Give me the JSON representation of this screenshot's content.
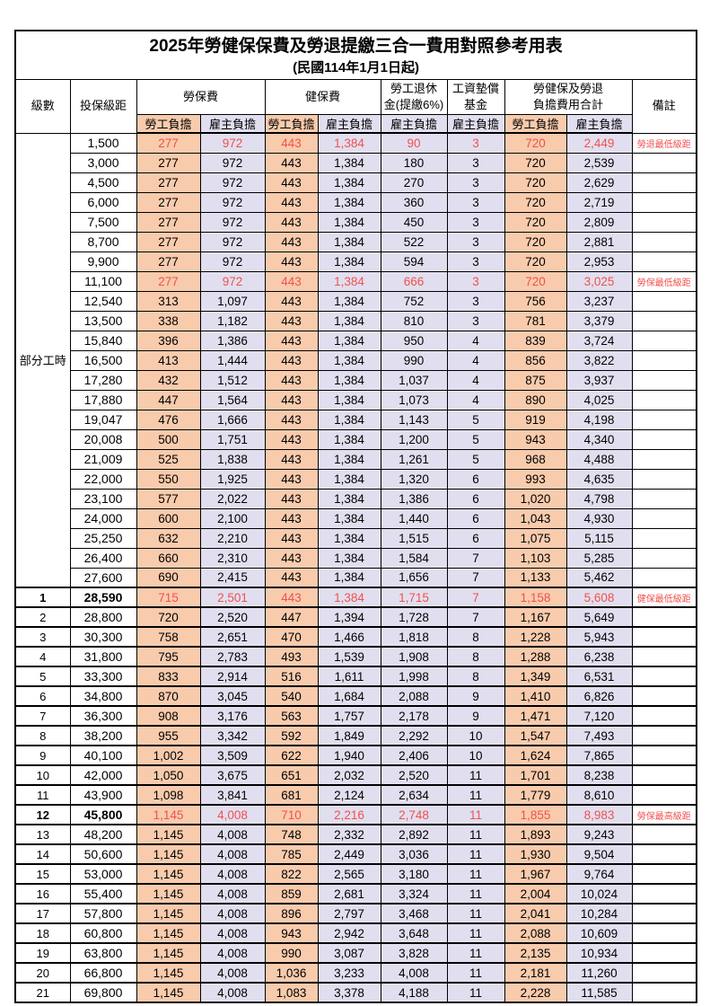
{
  "title": "2025年勞健保保費及勞退提繳三合一費用對照參考用表",
  "subtitle": "(民國114年1月1日起)",
  "header": {
    "level": "級數",
    "bracket": "投保級距",
    "labor_insurance": "勞保費",
    "health_insurance": "健保費",
    "pension_line1": "勞工退休",
    "pension_line2": "金(提繳6%)",
    "wage_fund_line1": "工資墊償",
    "wage_fund_line2": "基金",
    "total_line1": "勞健保及勞退",
    "total_line2": "負擔費用合計",
    "employee": "勞工負擔",
    "employer": "雇主負擔",
    "note": "備註"
  },
  "colors": {
    "employee_bg": "#F8CBAD",
    "employer_bg": "#E1DFEF",
    "highlight_red": "#F2504E",
    "border": "#000000"
  },
  "table": {
    "part_time_label": "部分工時",
    "part_time_row_count": 23,
    "rows": [
      {
        "lv": "",
        "amt": "1,500",
        "cells": [
          "277",
          "972",
          "443",
          "1,384",
          "90",
          "3",
          "720",
          "2,449"
        ],
        "note": "勞退最低級距",
        "red": true
      },
      {
        "lv": "",
        "amt": "3,000",
        "cells": [
          "277",
          "972",
          "443",
          "1,384",
          "180",
          "3",
          "720",
          "2,539"
        ],
        "note": ""
      },
      {
        "lv": "",
        "amt": "4,500",
        "cells": [
          "277",
          "972",
          "443",
          "1,384",
          "270",
          "3",
          "720",
          "2,629"
        ],
        "note": ""
      },
      {
        "lv": "",
        "amt": "6,000",
        "cells": [
          "277",
          "972",
          "443",
          "1,384",
          "360",
          "3",
          "720",
          "2,719"
        ],
        "note": ""
      },
      {
        "lv": "",
        "amt": "7,500",
        "cells": [
          "277",
          "972",
          "443",
          "1,384",
          "450",
          "3",
          "720",
          "2,809"
        ],
        "note": ""
      },
      {
        "lv": "",
        "amt": "8,700",
        "cells": [
          "277",
          "972",
          "443",
          "1,384",
          "522",
          "3",
          "720",
          "2,881"
        ],
        "note": ""
      },
      {
        "lv": "",
        "amt": "9,900",
        "cells": [
          "277",
          "972",
          "443",
          "1,384",
          "594",
          "3",
          "720",
          "2,953"
        ],
        "note": ""
      },
      {
        "lv": "",
        "amt": "11,100",
        "cells": [
          "277",
          "972",
          "443",
          "1,384",
          "666",
          "3",
          "720",
          "3,025"
        ],
        "note": "勞保最低級距",
        "red": true
      },
      {
        "lv": "",
        "amt": "12,540",
        "cells": [
          "313",
          "1,097",
          "443",
          "1,384",
          "752",
          "3",
          "756",
          "3,237"
        ],
        "note": ""
      },
      {
        "lv": "",
        "amt": "13,500",
        "cells": [
          "338",
          "1,182",
          "443",
          "1,384",
          "810",
          "3",
          "781",
          "3,379"
        ],
        "note": ""
      },
      {
        "lv": "",
        "amt": "15,840",
        "cells": [
          "396",
          "1,386",
          "443",
          "1,384",
          "950",
          "4",
          "839",
          "3,724"
        ],
        "note": ""
      },
      {
        "lv": "",
        "amt": "16,500",
        "cells": [
          "413",
          "1,444",
          "443",
          "1,384",
          "990",
          "4",
          "856",
          "3,822"
        ],
        "note": ""
      },
      {
        "lv": "",
        "amt": "17,280",
        "cells": [
          "432",
          "1,512",
          "443",
          "1,384",
          "1,037",
          "4",
          "875",
          "3,937"
        ],
        "note": ""
      },
      {
        "lv": "",
        "amt": "17,880",
        "cells": [
          "447",
          "1,564",
          "443",
          "1,384",
          "1,073",
          "4",
          "890",
          "4,025"
        ],
        "note": ""
      },
      {
        "lv": "",
        "amt": "19,047",
        "cells": [
          "476",
          "1,666",
          "443",
          "1,384",
          "1,143",
          "5",
          "919",
          "4,198"
        ],
        "note": ""
      },
      {
        "lv": "",
        "amt": "20,008",
        "cells": [
          "500",
          "1,751",
          "443",
          "1,384",
          "1,200",
          "5",
          "943",
          "4,340"
        ],
        "note": ""
      },
      {
        "lv": "",
        "amt": "21,009",
        "cells": [
          "525",
          "1,838",
          "443",
          "1,384",
          "1,261",
          "5",
          "968",
          "4,488"
        ],
        "note": ""
      },
      {
        "lv": "",
        "amt": "22,000",
        "cells": [
          "550",
          "1,925",
          "443",
          "1,384",
          "1,320",
          "6",
          "993",
          "4,635"
        ],
        "note": ""
      },
      {
        "lv": "",
        "amt": "23,100",
        "cells": [
          "577",
          "2,022",
          "443",
          "1,384",
          "1,386",
          "6",
          "1,020",
          "4,798"
        ],
        "note": ""
      },
      {
        "lv": "",
        "amt": "24,000",
        "cells": [
          "600",
          "2,100",
          "443",
          "1,384",
          "1,440",
          "6",
          "1,043",
          "4,930"
        ],
        "note": ""
      },
      {
        "lv": "",
        "amt": "25,250",
        "cells": [
          "632",
          "2,210",
          "443",
          "1,384",
          "1,515",
          "6",
          "1,075",
          "5,115"
        ],
        "note": ""
      },
      {
        "lv": "",
        "amt": "26,400",
        "cells": [
          "660",
          "2,310",
          "443",
          "1,384",
          "1,584",
          "7",
          "1,103",
          "5,285"
        ],
        "note": ""
      },
      {
        "lv": "",
        "amt": "27,600",
        "cells": [
          "690",
          "2,415",
          "443",
          "1,384",
          "1,656",
          "7",
          "1,133",
          "5,462"
        ],
        "note": ""
      },
      {
        "lv": "1",
        "amt": "28,590",
        "cells": [
          "715",
          "2,501",
          "443",
          "1,384",
          "1,715",
          "7",
          "1,158",
          "5,608"
        ],
        "note": "健保最低級距",
        "red": true,
        "bold": true
      },
      {
        "lv": "2",
        "amt": "28,800",
        "cells": [
          "720",
          "2,520",
          "447",
          "1,394",
          "1,728",
          "7",
          "1,167",
          "5,649"
        ],
        "note": ""
      },
      {
        "lv": "3",
        "amt": "30,300",
        "cells": [
          "758",
          "2,651",
          "470",
          "1,466",
          "1,818",
          "8",
          "1,228",
          "5,943"
        ],
        "note": ""
      },
      {
        "lv": "4",
        "amt": "31,800",
        "cells": [
          "795",
          "2,783",
          "493",
          "1,539",
          "1,908",
          "8",
          "1,288",
          "6,238"
        ],
        "note": ""
      },
      {
        "lv": "5",
        "amt": "33,300",
        "cells": [
          "833",
          "2,914",
          "516",
          "1,611",
          "1,998",
          "8",
          "1,349",
          "6,531"
        ],
        "note": ""
      },
      {
        "lv": "6",
        "amt": "34,800",
        "cells": [
          "870",
          "3,045",
          "540",
          "1,684",
          "2,088",
          "9",
          "1,410",
          "6,826"
        ],
        "note": ""
      },
      {
        "lv": "7",
        "amt": "36,300",
        "cells": [
          "908",
          "3,176",
          "563",
          "1,757",
          "2,178",
          "9",
          "1,471",
          "7,120"
        ],
        "note": ""
      },
      {
        "lv": "8",
        "amt": "38,200",
        "cells": [
          "955",
          "3,342",
          "592",
          "1,849",
          "2,292",
          "10",
          "1,547",
          "7,493"
        ],
        "note": ""
      },
      {
        "lv": "9",
        "amt": "40,100",
        "cells": [
          "1,002",
          "3,509",
          "622",
          "1,940",
          "2,406",
          "10",
          "1,624",
          "7,865"
        ],
        "note": ""
      },
      {
        "lv": "10",
        "amt": "42,000",
        "cells": [
          "1,050",
          "3,675",
          "651",
          "2,032",
          "2,520",
          "11",
          "1,701",
          "8,238"
        ],
        "note": ""
      },
      {
        "lv": "11",
        "amt": "43,900",
        "cells": [
          "1,098",
          "3,841",
          "681",
          "2,124",
          "2,634",
          "11",
          "1,779",
          "8,610"
        ],
        "note": ""
      },
      {
        "lv": "12",
        "amt": "45,800",
        "cells": [
          "1,145",
          "4,008",
          "710",
          "2,216",
          "2,748",
          "11",
          "1,855",
          "8,983"
        ],
        "note": "勞保最高級距",
        "red": true,
        "bold": true
      },
      {
        "lv": "13",
        "amt": "48,200",
        "cells": [
          "1,145",
          "4,008",
          "748",
          "2,332",
          "2,892",
          "11",
          "1,893",
          "9,243"
        ],
        "note": ""
      },
      {
        "lv": "14",
        "amt": "50,600",
        "cells": [
          "1,145",
          "4,008",
          "785",
          "2,449",
          "3,036",
          "11",
          "1,930",
          "9,504"
        ],
        "note": ""
      },
      {
        "lv": "15",
        "amt": "53,000",
        "cells": [
          "1,145",
          "4,008",
          "822",
          "2,565",
          "3,180",
          "11",
          "1,967",
          "9,764"
        ],
        "note": ""
      },
      {
        "lv": "16",
        "amt": "55,400",
        "cells": [
          "1,145",
          "4,008",
          "859",
          "2,681",
          "3,324",
          "11",
          "2,004",
          "10,024"
        ],
        "note": ""
      },
      {
        "lv": "17",
        "amt": "57,800",
        "cells": [
          "1,145",
          "4,008",
          "896",
          "2,797",
          "3,468",
          "11",
          "2,041",
          "10,284"
        ],
        "note": ""
      },
      {
        "lv": "18",
        "amt": "60,800",
        "cells": [
          "1,145",
          "4,008",
          "943",
          "2,942",
          "3,648",
          "11",
          "2,088",
          "10,609"
        ],
        "note": ""
      },
      {
        "lv": "19",
        "amt": "63,800",
        "cells": [
          "1,145",
          "4,008",
          "990",
          "3,087",
          "3,828",
          "11",
          "2,135",
          "10,934"
        ],
        "note": ""
      },
      {
        "lv": "20",
        "amt": "66,800",
        "cells": [
          "1,145",
          "4,008",
          "1,036",
          "3,233",
          "4,008",
          "11",
          "2,181",
          "11,260"
        ],
        "note": ""
      },
      {
        "lv": "21",
        "amt": "69,800",
        "cells": [
          "1,145",
          "4,008",
          "1,083",
          "3,378",
          "4,188",
          "11",
          "2,228",
          "11,585"
        ],
        "note": ""
      }
    ]
  }
}
